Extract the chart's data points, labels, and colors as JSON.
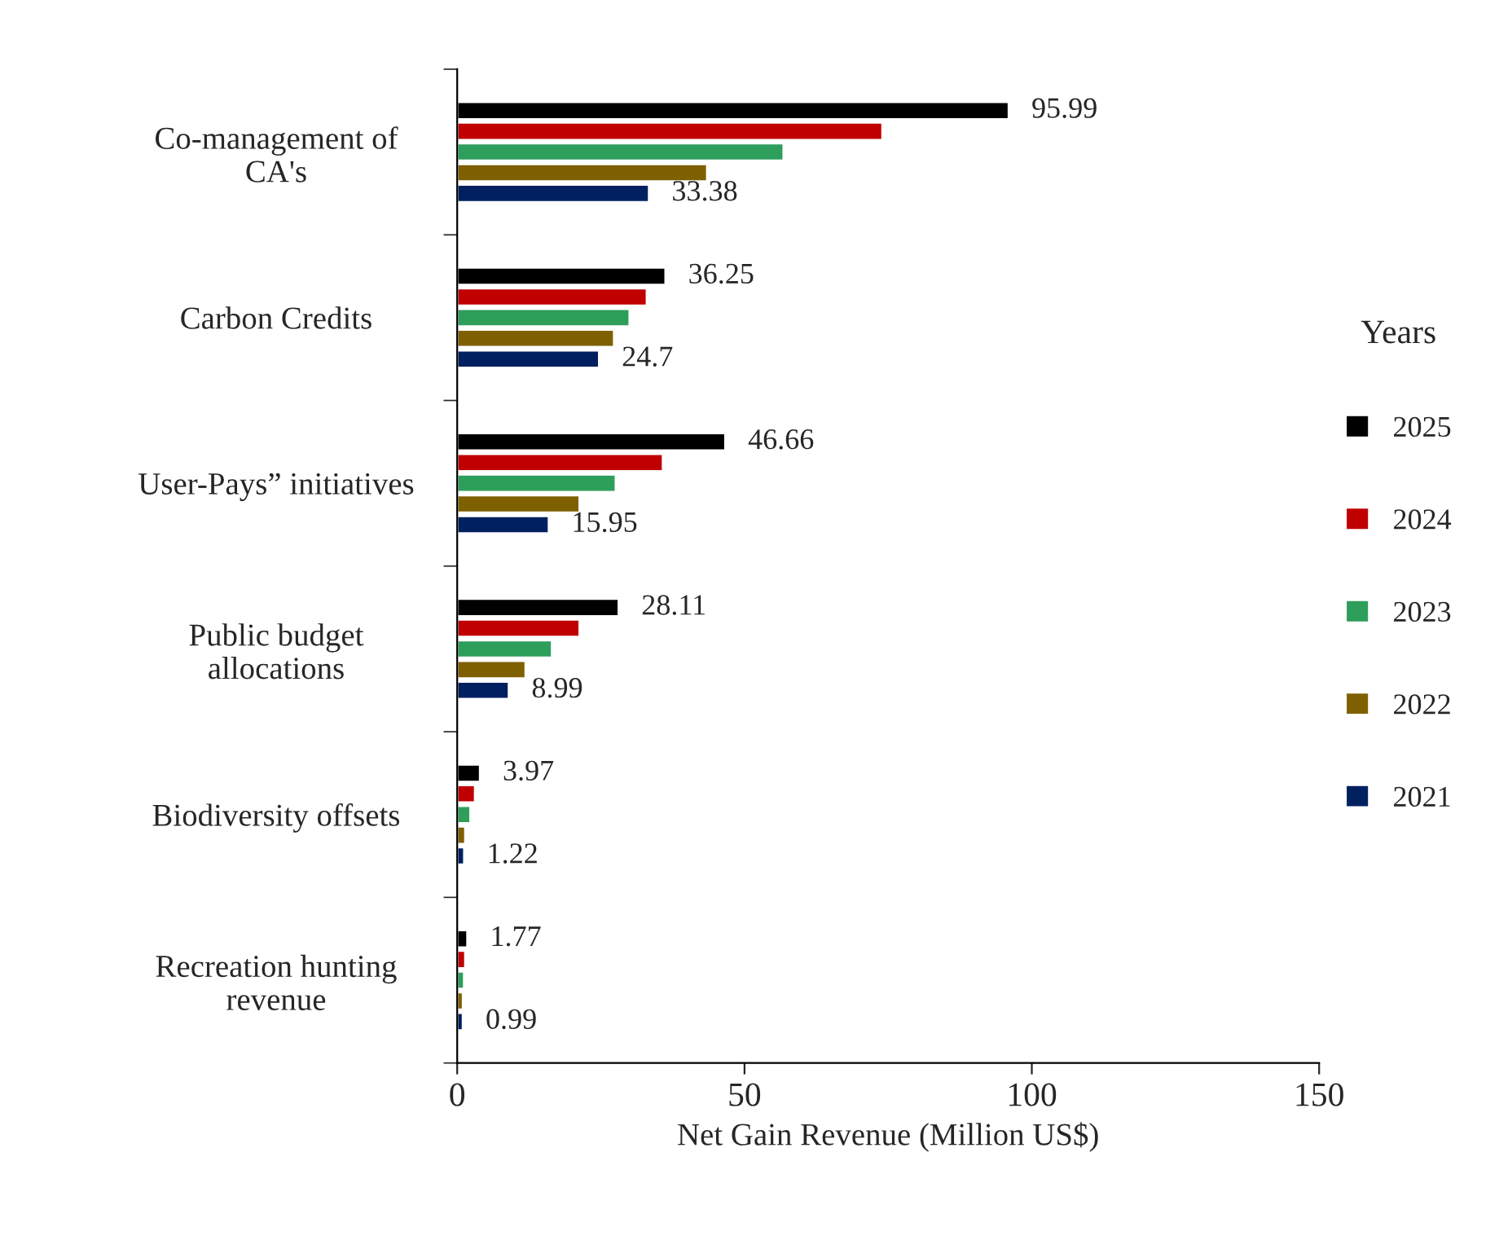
{
  "chart_data": {
    "type": "bar",
    "orientation": "horizontal",
    "categories": [
      "Co-management of\nCA's",
      "Carbon Credits",
      "User-Pays” initiatives",
      "Public budget\nallocations",
      "Biodiversity offsets",
      "Recreation hunting\nrevenue"
    ],
    "series": [
      {
        "name": "2025",
        "color": "#000000",
        "values": [
          95.99,
          36.25,
          46.66,
          28.11,
          3.97,
          1.77
        ],
        "value_labels": [
          "95.99",
          "36.25",
          "46.66",
          "28.11",
          "3.97",
          "1.77"
        ]
      },
      {
        "name": "2024",
        "color": "#c00000",
        "values": [
          74,
          33,
          35.8,
          21.3,
          3.1,
          1.4
        ]
      },
      {
        "name": "2023",
        "color": "#2e9e5b",
        "values": [
          56.8,
          30,
          27.6,
          16.5,
          2.3,
          1.2
        ]
      },
      {
        "name": "2022",
        "color": "#7f6000",
        "values": [
          43.5,
          27.3,
          21.3,
          11.9,
          1.4,
          1.0
        ]
      },
      {
        "name": "2021",
        "color": "#002060",
        "values": [
          33.38,
          24.7,
          15.95,
          8.99,
          1.22,
          0.99
        ],
        "value_labels": [
          "33.38",
          "24.7",
          "15.95",
          "8.99",
          "1.22",
          "0.99"
        ]
      }
    ],
    "xlim": [
      0,
      150
    ],
    "xticks": [
      0,
      50,
      100,
      150
    ],
    "xlabel": "Net Gain Revenue (Million US$)",
    "legend_title": "Years",
    "legend": "right",
    "grid": false
  }
}
